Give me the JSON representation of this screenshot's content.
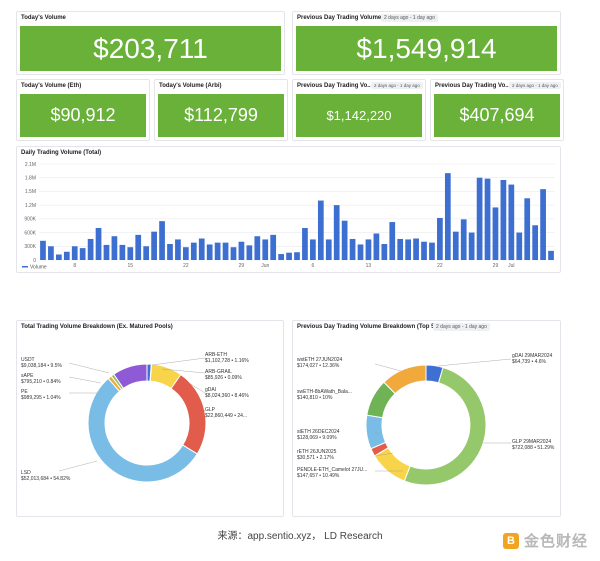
{
  "cards": {
    "today_volume": {
      "title": "Today's Volume",
      "value": "$203,711"
    },
    "prev_day_volume": {
      "title": "Previous Day Trading Volume",
      "badge": "2 days ago - 1 day ago",
      "value": "$1,549,914"
    },
    "today_eth": {
      "title": "Today's Volume (Eth)",
      "value": "$90,912"
    },
    "today_arbi": {
      "title": "Today's Volume (Arbi)",
      "value": "$112,799"
    },
    "prev_day_vo_1": {
      "title": "Previous Day Trading Vo...",
      "badge": "2 days ago - 1 day ago",
      "value": "$1,142,220"
    },
    "prev_day_vo_2": {
      "title": "Previous Day Trading Vo...",
      "badge": "2 days ago - 1 day ago",
      "value": "$407,694"
    }
  },
  "daily_chart": {
    "title": "Daily Trading Volume (Total)",
    "legend": "Volume",
    "y_ticks": [
      "2.1M",
      "1.8M",
      "1.5M",
      "1.2M",
      "900K",
      "600K",
      "300K",
      "0"
    ],
    "x_ticks": [
      {
        "label": "8",
        "index": 4
      },
      {
        "label": "15",
        "index": 11
      },
      {
        "label": "22",
        "index": 18
      },
      {
        "label": "29",
        "index": 25
      },
      {
        "label": "Jun",
        "index": 28
      },
      {
        "label": "6",
        "index": 34
      },
      {
        "label": "13",
        "index": 41
      },
      {
        "label": "22",
        "index": 50
      },
      {
        "label": "29",
        "index": 57
      },
      {
        "label": "Jul",
        "index": 59
      }
    ],
    "color": "#3d6fd1"
  },
  "chart_data": [
    {
      "type": "bar",
      "title": "Daily Trading Volume (Total)",
      "series_name": "Volume",
      "ylim": [
        0,
        2100000
      ],
      "values": [
        420000,
        300000,
        120000,
        180000,
        300000,
        260000,
        460000,
        700000,
        330000,
        520000,
        330000,
        280000,
        550000,
        300000,
        620000,
        850000,
        350000,
        450000,
        280000,
        380000,
        470000,
        340000,
        380000,
        380000,
        280000,
        400000,
        320000,
        520000,
        450000,
        550000,
        130000,
        160000,
        170000,
        700000,
        450000,
        1300000,
        450000,
        1200000,
        860000,
        460000,
        340000,
        450000,
        580000,
        350000,
        830000,
        460000,
        450000,
        470000,
        400000,
        380000,
        920000,
        1900000,
        620000,
        890000,
        600000,
        1800000,
        1780000,
        1150000,
        1750000,
        1650000,
        600000,
        1350000,
        760000,
        1550000,
        200000
      ]
    },
    {
      "type": "pie",
      "title": "Total Trading Volume Breakdown (Ex. Matured Pools)",
      "slices": [
        {
          "label": "ARB-ETH",
          "value": 1102728,
          "pct": "1.16%",
          "text": "$1,102,728 • 1.16%"
        },
        {
          "label": "ARB-GRAIL",
          "value": 85926,
          "pct": "0.09%",
          "text": "$85,926 • 0.09%"
        },
        {
          "label": "gDAI",
          "value": 8024360,
          "pct": "8.46%",
          "text": "$8,024,360 • 8.46%"
        },
        {
          "label": "GLP",
          "value": 22860449,
          "pct": "24...",
          "text": "$22,860,449 • 24..."
        },
        {
          "label": "LSD",
          "value": 52013684,
          "pct": "54.82%",
          "text": "$52,013,684 • 54.82%"
        },
        {
          "label": "PE",
          "value": 989295,
          "pct": "1.04%",
          "text": "$989,295 • 1.04%"
        },
        {
          "label": "sAPE",
          "value": 795210,
          "pct": "0.84%",
          "text": "$795,210 • 0.84%"
        },
        {
          "label": "USDT",
          "value": 9038184,
          "pct": "9.5%",
          "text": "$9,038,184 • 9.5%"
        }
      ]
    },
    {
      "type": "pie",
      "title": "Previous Day Trading Volume Breakdown (Top 5)",
      "slices": [
        {
          "label": "gDAI 29MAR2024",
          "value": 64739,
          "pct": "4.6%",
          "text": "$64,739 • 4.6%"
        },
        {
          "label": "GLP 29MAR2024",
          "value": 722088,
          "pct": "51.29%",
          "text": "$722,088 • 51.29%"
        },
        {
          "label": "PENDLE-ETH_Camelot 27JU...",
          "value": 147657,
          "pct": "10.49%",
          "text": "$147,657 • 10.49%"
        },
        {
          "label": "rETH 26JUN2025",
          "value": 30571,
          "pct": "2.17%",
          "text": "$30,571 • 2.17%"
        },
        {
          "label": "stETH 26DEC2024",
          "value": 128069,
          "pct": "9.09%",
          "text": "$128,069 • 9.09%"
        },
        {
          "label": "swETH-8bAWath_Bala...",
          "value": 140810,
          "pct": "10%",
          "text": "$140,810 • 10%"
        },
        {
          "label": "wstETH 27JUN2024",
          "value": 174027,
          "pct": "12.36%",
          "text": "$174,027 • 12.36%"
        }
      ]
    }
  ],
  "pie_total": {
    "title": "Total Trading Volume Breakdown (Ex. Matured Pools)",
    "colors": [
      "#3f6fd0",
      "#3aa39a",
      "#f7d44a",
      "#e25c4b",
      "#79bde6",
      "#f2a93b",
      "#8fc25a",
      "#8f5ad6"
    ]
  },
  "pie_prev": {
    "title": "Previous Day Trading Volume Breakdown (Top 5)",
    "badge": "2 days ago - 1 day ago",
    "colors": [
      "#3f6fd0",
      "#94c86a",
      "#f7d44a",
      "#e25c4b",
      "#79bde6",
      "#6fb354",
      "#f2a93b"
    ]
  },
  "footer": {
    "caption": "来源：app.sentio.xyz， LD Research",
    "logo_mark": "B",
    "logo_text": "金色财经"
  }
}
